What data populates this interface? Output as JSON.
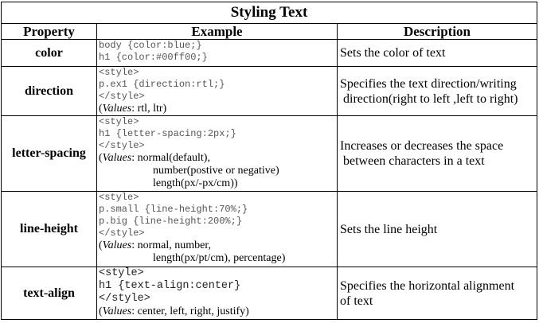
{
  "title": "Styling Text",
  "headers": {
    "property": "Property",
    "example": "Example",
    "description": "Description"
  },
  "rows": [
    {
      "property": "color",
      "code": [
        "body {color:blue;}",
        "h1 {color:#00ff00;}"
      ],
      "values_key": "",
      "values_lines": [],
      "description": "Sets the color of text"
    },
    {
      "property": "direction",
      "code": [
        "<style>",
        "p.ex1 {direction:rtl;}",
        "</style>"
      ],
      "values_key": "Values",
      "values_lines": [
        ": rtl, ltr)"
      ],
      "description_lines": [
        "Specifies the text direction/writing",
        " direction(right to left ,left to right)"
      ]
    },
    {
      "property": "letter-spacing",
      "code": [
        "<style>",
        "h1 {letter-spacing:2px;}",
        "</style>"
      ],
      "values_key": "Values",
      "values_lines": [
        ": normal(default),",
        "number(postive or negative)",
        "length(px/-px/cm))"
      ],
      "description_lines": [
        "Increases or decreases the space",
        " between characters in a text"
      ]
    },
    {
      "property": "line-height",
      "code": [
        "<style>",
        "p.small {line-height:70%;}",
        "p.big {line-height:200%;}",
        "</style>"
      ],
      "values_key": "Values",
      "values_lines": [
        ": normal, number,",
        "length(px/pt/cm), percentage)"
      ],
      "description": "Sets the line height"
    },
    {
      "property": "text-align",
      "code": [
        "<style>",
        "h1 {text-align:center}",
        "</style>"
      ],
      "values_key": "Values",
      "values_lines": [
        ": center, left, right, justify)"
      ],
      "description_lines": [
        "Specifies the horizontal alignment",
        "of text"
      ]
    }
  ]
}
